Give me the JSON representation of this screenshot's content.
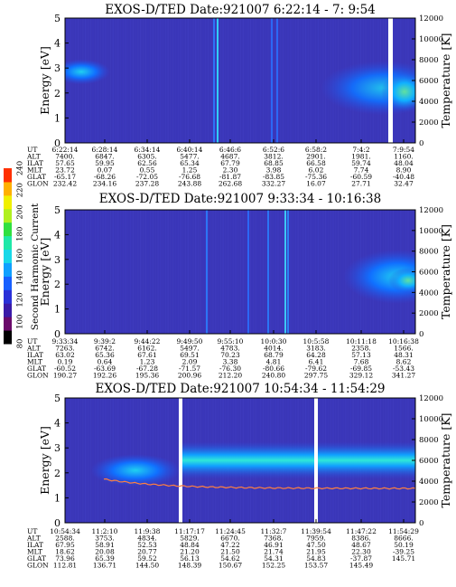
{
  "colorbar": {
    "title": "Second Harmonic Current",
    "ticks": [
      "80",
      "100",
      "120",
      "140",
      "160",
      "180",
      "200",
      "220",
      "240"
    ],
    "colors": [
      "#000000",
      "#6a0a6a",
      "#3a1aa8",
      "#2a30d8",
      "#1860ff",
      "#10a0ff",
      "#18d8e8",
      "#20e8a8",
      "#30e040",
      "#b0f020",
      "#f0f000",
      "#ffb000",
      "#ff3000"
    ]
  },
  "chart_data": [
    {
      "type": "heatmap",
      "title": "EXOS-D/TED   Date:921007   6:22:14 - 7: 9:54",
      "ylabel": "Energy [eV]",
      "y2label": "Temperature [K]",
      "ylim": [
        0,
        5
      ],
      "y2lim": [
        0,
        12000
      ],
      "yticks": [
        "0",
        "1",
        "2",
        "3",
        "4",
        "5"
      ],
      "y2ticks": [
        "0",
        "2000",
        "4000",
        "6000",
        "8000",
        "10000",
        "12000"
      ],
      "background_color": "#3a36b8",
      "row_labels": [
        "UT",
        "ALT",
        "ILAT",
        "MLT",
        "GLAT",
        "GLON"
      ],
      "columns": [
        [
          "6:22:14",
          "7400.",
          "57.65",
          "23.72",
          "-65.17",
          "232.42"
        ],
        [
          "6:28:14",
          "6847.",
          "59.95",
          "0.07",
          "-68.26",
          "234.16"
        ],
        [
          "6:34:14",
          "6305.",
          "62.56",
          "0.55",
          "-72.05",
          "237.28"
        ],
        [
          "6:40:14",
          "5477.",
          "65.34",
          "1.25",
          "-76.68",
          "243.88"
        ],
        [
          "6:46:6",
          "4687.",
          "67.79",
          "2.30",
          "-81.87",
          "262.68"
        ],
        [
          "6:52:6",
          "3812.",
          "68.85",
          "3.98",
          "-83.85",
          "332.27"
        ],
        [
          "6:58:2",
          "2901.",
          "66.58",
          "6.02",
          "-75.36",
          "16.07"
        ],
        [
          "7:4:2",
          "1981.",
          "59.74",
          "7.74",
          "-60.59",
          "27.71"
        ],
        [
          "7:9:54",
          "1160.",
          "48.04",
          "8.90",
          "-40.48",
          "32.47"
        ]
      ]
    },
    {
      "type": "heatmap",
      "title": "EXOS-D/TED   Date:921007   9:33:34 - 10:16:38",
      "ylabel": "Energy [eV]",
      "y2label": "Temperature [K]",
      "ylim": [
        0,
        5
      ],
      "y2lim": [
        0,
        12000
      ],
      "yticks": [
        "0",
        "1",
        "2",
        "3",
        "4",
        "5"
      ],
      "y2ticks": [
        "0",
        "2000",
        "4000",
        "6000",
        "8000",
        "10000",
        "12000"
      ],
      "background_color": "#3a36b8",
      "row_labels": [
        "UT",
        "ALT",
        "ILAT",
        "MLT",
        "GLAT",
        "GLON"
      ],
      "columns": [
        [
          "9:33:34",
          "7263.",
          "63.02",
          "0.19",
          "-60.52",
          "190.27"
        ],
        [
          "9:39:2",
          "6742.",
          "65.36",
          "0.64",
          "-63.69",
          "192.26"
        ],
        [
          "9:44:22",
          "6162.",
          "67.61",
          "1.23",
          "-67.28",
          "195.36"
        ],
        [
          "9:49:50",
          "5497.",
          "69.51",
          "2.09",
          "-71.57",
          "200.96"
        ],
        [
          "9:55:10",
          "4783.",
          "70.23",
          "3.38",
          "-76.30",
          "212.20"
        ],
        [
          "10:0:30",
          "4014.",
          "68.79",
          "4.81",
          "-80.66",
          "240.80"
        ],
        [
          "10:5:58",
          "3183.",
          "64.28",
          "6.41",
          "-79.62",
          "297.75"
        ],
        [
          "10:11:18",
          "2358.",
          "57.13",
          "7.68",
          "-69.85",
          "329.12"
        ],
        [
          "10:16:38",
          "1566.",
          "48.31",
          "8.62",
          "-53.43",
          "341.27"
        ]
      ]
    },
    {
      "type": "heatmap",
      "title": "EXOS-D/TED   Date:921007   10:54:34 - 11:54:29",
      "ylabel": "Energy [eV]",
      "y2label": "Temperature [K]",
      "ylim": [
        0,
        5
      ],
      "y2lim": [
        0,
        12000
      ],
      "yticks": [
        "0",
        "1",
        "2",
        "3",
        "4",
        "5"
      ],
      "y2ticks": [
        "0",
        "2000",
        "4000",
        "6000",
        "8000",
        "10000",
        "12000"
      ],
      "background_color": "#3a36b8",
      "row_labels": [
        "UT",
        "ALT",
        "ILAT",
        "MLT",
        "GLAT",
        "GLON"
      ],
      "columns": [
        [
          "10:54:34",
          "2588.",
          "67.95",
          "18.62",
          "73.96",
          "112.81"
        ],
        [
          "11:2:10",
          "3753.",
          "58.91",
          "20.08",
          "65.39",
          "136.71"
        ],
        [
          "11:9:38",
          "4834.",
          "52.53",
          "20.77",
          "59.52",
          "144.50"
        ],
        [
          "11:17:17",
          "5829.",
          "48.84",
          "21.20",
          "56.13",
          "148.39"
        ],
        [
          "11:24:45",
          "6670.",
          "47.22",
          "21.50",
          "54.62",
          "150.67"
        ],
        [
          "11:32:7",
          "7368.",
          "46.91",
          "21.74",
          "54.31",
          "152.25"
        ],
        [
          "11:39:54",
          "7959.",
          "47.50",
          "21.95",
          "54.83",
          "153.57"
        ],
        [
          "11:47:22",
          "8386.",
          "48.67",
          "22.30",
          "-37.87",
          "145.49"
        ],
        [
          "11:54:29",
          "8666.",
          "50.19",
          "-39.25",
          "145.71",
          ""
        ]
      ]
    }
  ]
}
